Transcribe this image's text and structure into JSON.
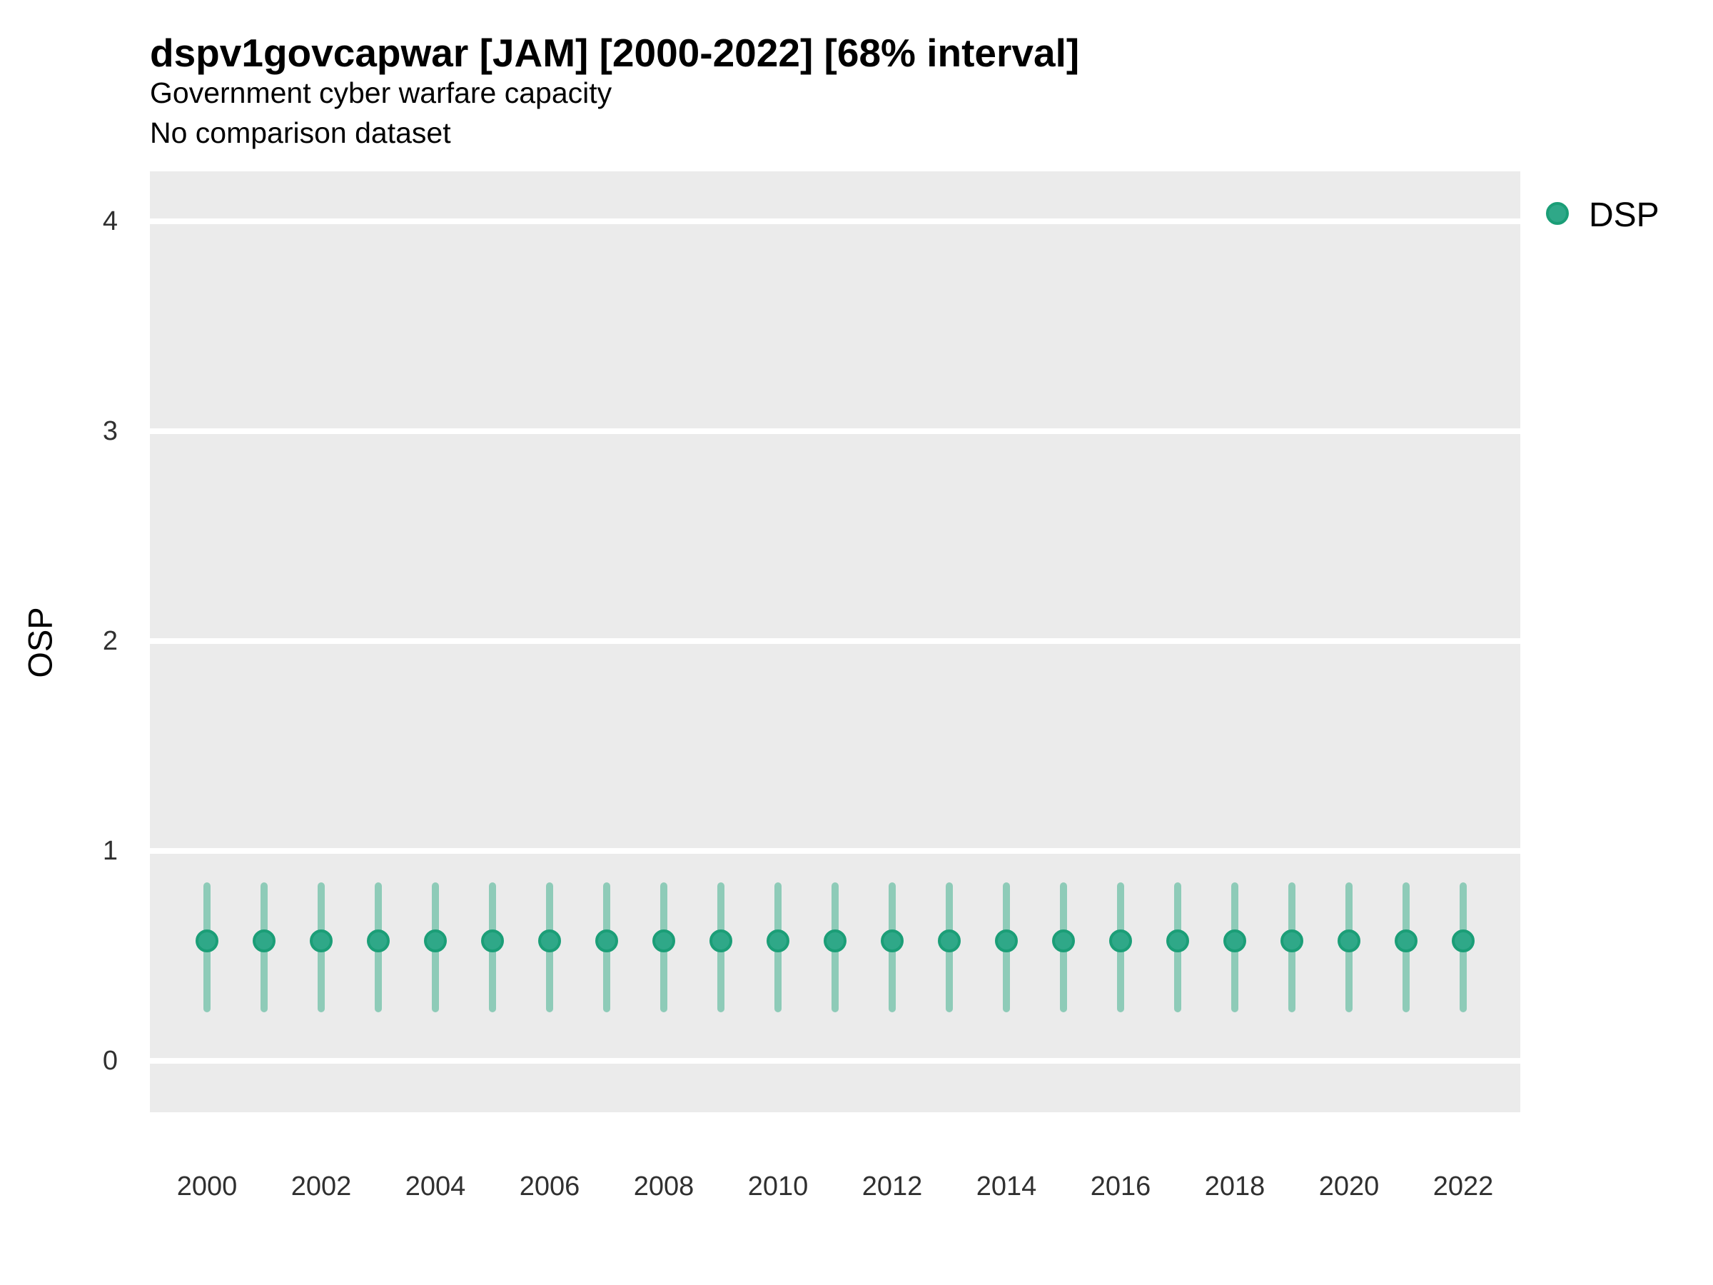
{
  "header": {
    "title": "dspv1govcapwar [JAM] [2000-2022] [68% interval]",
    "subtitle": "Government cyber warfare capacity",
    "subtitle2": "No comparison dataset"
  },
  "legend": {
    "label": "DSP",
    "marker": "circle-icon",
    "fill_color": "#2fa888",
    "border_color": "#1b9e77"
  },
  "colors": {
    "panel_background": "#ebebeb",
    "gridline": "#ffffff",
    "point_fill": "#2fa888",
    "point_border": "#1b9e77",
    "interval_bar": "#8ecbb8",
    "text": "#000000",
    "tick_text": "#303030"
  },
  "chart_data": {
    "type": "scatter",
    "title": "dspv1govcapwar [JAM] [2000-2022] [68% interval]",
    "subtitle": "Government cyber warfare capacity",
    "note": "No comparison dataset",
    "xlabel": "",
    "ylabel": "OSP",
    "interval_label": "68% interval",
    "grid": true,
    "legend_position": "right",
    "xlim": [
      1999,
      2023
    ],
    "ylim": [
      -0.24,
      4.24
    ],
    "y_ticks": [
      0,
      1,
      2,
      3,
      4
    ],
    "y_tick_labels": [
      "0",
      "1",
      "2",
      "3",
      "4"
    ],
    "x_tick_labels": [
      "2000",
      "2002",
      "2004",
      "2006",
      "2008",
      "2010",
      "2012",
      "2014",
      "2016",
      "2018",
      "2020",
      "2022"
    ],
    "series": [
      {
        "name": "DSP",
        "x": [
          2000,
          2001,
          2002,
          2003,
          2004,
          2005,
          2006,
          2007,
          2008,
          2009,
          2010,
          2011,
          2012,
          2013,
          2014,
          2015,
          2016,
          2017,
          2018,
          2019,
          2020,
          2021,
          2022
        ],
        "values": [
          0.57,
          0.57,
          0.57,
          0.57,
          0.57,
          0.57,
          0.57,
          0.57,
          0.57,
          0.57,
          0.57,
          0.57,
          0.57,
          0.57,
          0.57,
          0.57,
          0.57,
          0.57,
          0.57,
          0.57,
          0.57,
          0.57,
          0.57
        ],
        "interval_low": [
          0.23,
          0.23,
          0.23,
          0.23,
          0.23,
          0.23,
          0.23,
          0.23,
          0.23,
          0.23,
          0.23,
          0.23,
          0.23,
          0.23,
          0.23,
          0.23,
          0.23,
          0.23,
          0.23,
          0.23,
          0.23,
          0.23,
          0.23
        ],
        "interval_high": [
          0.85,
          0.85,
          0.85,
          0.85,
          0.85,
          0.85,
          0.85,
          0.85,
          0.85,
          0.85,
          0.85,
          0.85,
          0.85,
          0.85,
          0.85,
          0.85,
          0.85,
          0.85,
          0.85,
          0.85,
          0.85,
          0.85,
          0.85
        ]
      }
    ]
  }
}
